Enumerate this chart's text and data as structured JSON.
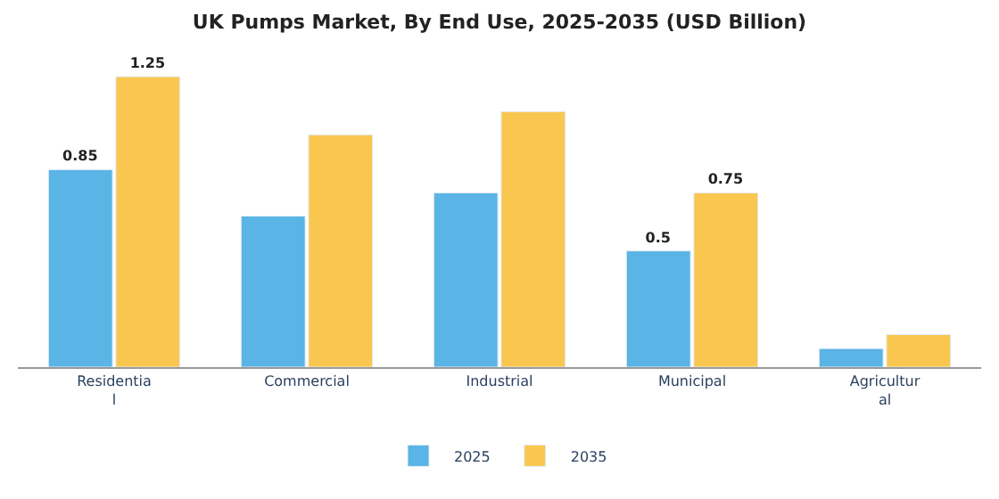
{
  "chart_data": {
    "type": "bar",
    "title": "UK Pumps Market, By End Use, 2025-2035 (USD Billion)",
    "categories": [
      "Residential",
      "Commercial",
      "Industrial",
      "Municipal",
      "Agricultural"
    ],
    "series": [
      {
        "name": "2025",
        "color": "#5ab4e5",
        "values": [
          0.85,
          0.65,
          0.75,
          0.5,
          0.08
        ],
        "value_labels": [
          "0.85",
          null,
          null,
          "0.5",
          null
        ]
      },
      {
        "name": "2035",
        "color": "#f9c74f",
        "values": [
          1.25,
          1.0,
          1.1,
          0.75,
          0.14
        ],
        "value_labels": [
          "1.25",
          null,
          null,
          "0.75",
          null
        ]
      }
    ],
    "legend": "bottom"
  }
}
